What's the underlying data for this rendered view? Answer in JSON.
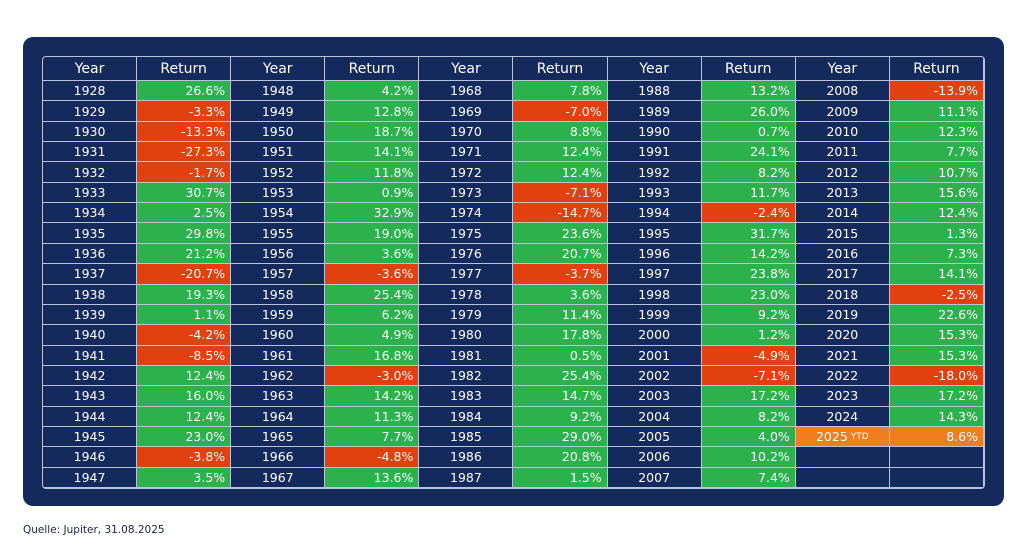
{
  "table": {
    "header": [
      "Year",
      "Return"
    ],
    "colors": {
      "positive": "#2bb24c",
      "negative": "#e2400f",
      "current": "#f07d22",
      "background": "#142a5c"
    },
    "groups": [
      [
        [
          "1928",
          "26.6%"
        ],
        [
          "1929",
          "-3.3%"
        ],
        [
          "1930",
          "-13.3%"
        ],
        [
          "1931",
          "-27.3%"
        ],
        [
          "1932",
          "-1.7%"
        ],
        [
          "1933",
          "30.7%"
        ],
        [
          "1934",
          "2.5%"
        ],
        [
          "1935",
          "29.8%"
        ],
        [
          "1936",
          "21.2%"
        ],
        [
          "1937",
          "-20.7%"
        ],
        [
          "1938",
          "19.3%"
        ],
        [
          "1939",
          "1.1%"
        ],
        [
          "1940",
          "-4.2%"
        ],
        [
          "1941",
          "-8.5%"
        ],
        [
          "1942",
          "12.4%"
        ],
        [
          "1943",
          "16.0%"
        ],
        [
          "1944",
          "12.4%"
        ],
        [
          "1945",
          "23.0%"
        ],
        [
          "1946",
          "-3.8%"
        ],
        [
          "1947",
          "3.5%"
        ]
      ],
      [
        [
          "1948",
          "4.2%"
        ],
        [
          "1949",
          "12.8%"
        ],
        [
          "1950",
          "18.7%"
        ],
        [
          "1951",
          "14.1%"
        ],
        [
          "1952",
          "11.8%"
        ],
        [
          "1953",
          "0.9%"
        ],
        [
          "1954",
          "32.9%"
        ],
        [
          "1955",
          "19.0%"
        ],
        [
          "1956",
          "3.6%"
        ],
        [
          "1957",
          "-3.6%"
        ],
        [
          "1958",
          "25.4%"
        ],
        [
          "1959",
          "6.2%"
        ],
        [
          "1960",
          "4.9%"
        ],
        [
          "1961",
          "16.8%"
        ],
        [
          "1962",
          "-3.0%"
        ],
        [
          "1963",
          "14.2%"
        ],
        [
          "1964",
          "11.3%"
        ],
        [
          "1965",
          "7.7%"
        ],
        [
          "1966",
          "-4.8%"
        ],
        [
          "1967",
          "13.6%"
        ]
      ],
      [
        [
          "1968",
          "7.8%"
        ],
        [
          "1969",
          "-7.0%"
        ],
        [
          "1970",
          "8.8%"
        ],
        [
          "1971",
          "12.4%"
        ],
        [
          "1972",
          "12.4%"
        ],
        [
          "1973",
          "-7.1%"
        ],
        [
          "1974",
          "-14.7%"
        ],
        [
          "1975",
          "23.6%"
        ],
        [
          "1976",
          "20.7%"
        ],
        [
          "1977",
          "-3.7%"
        ],
        [
          "1978",
          "3.6%"
        ],
        [
          "1979",
          "11.4%"
        ],
        [
          "1980",
          "17.8%"
        ],
        [
          "1981",
          "0.5%"
        ],
        [
          "1982",
          "25.4%"
        ],
        [
          "1983",
          "14.7%"
        ],
        [
          "1984",
          "9.2%"
        ],
        [
          "1985",
          "29.0%"
        ],
        [
          "1986",
          "20.8%"
        ],
        [
          "1987",
          "1.5%"
        ]
      ],
      [
        [
          "1988",
          "13.2%"
        ],
        [
          "1989",
          "26.0%"
        ],
        [
          "1990",
          "0.7%"
        ],
        [
          "1991",
          "24.1%"
        ],
        [
          "1992",
          "8.2%"
        ],
        [
          "1993",
          "11.7%"
        ],
        [
          "1994",
          "-2.4%"
        ],
        [
          "1995",
          "31.7%"
        ],
        [
          "1996",
          "14.2%"
        ],
        [
          "1997",
          "23.8%"
        ],
        [
          "1998",
          "23.0%"
        ],
        [
          "1999",
          "9.2%"
        ],
        [
          "2000",
          "1.2%"
        ],
        [
          "2001",
          "-4.9%"
        ],
        [
          "2002",
          "-7.1%"
        ],
        [
          "2003",
          "17.2%"
        ],
        [
          "2004",
          "8.2%"
        ],
        [
          "2005",
          "4.0%"
        ],
        [
          "2006",
          "10.2%"
        ],
        [
          "2007",
          "7.4%"
        ]
      ],
      [
        [
          "2008",
          "-13.9%"
        ],
        [
          "2009",
          "11.1%"
        ],
        [
          "2010",
          "12.3%"
        ],
        [
          "2011",
          "7.7%"
        ],
        [
          "2012",
          "10.7%"
        ],
        [
          "2013",
          "15.6%"
        ],
        [
          "2014",
          "12.4%"
        ],
        [
          "2015",
          "1.3%"
        ],
        [
          "2016",
          "7.3%"
        ],
        [
          "2017",
          "14.1%"
        ],
        [
          "2018",
          "-2.5%"
        ],
        [
          "2019",
          "22.6%"
        ],
        [
          "2020",
          "15.3%"
        ],
        [
          "2021",
          "15.3%"
        ],
        [
          "2022",
          "-18.0%"
        ],
        [
          "2023",
          "17.2%"
        ],
        [
          "2024",
          "14.3%"
        ],
        [
          "2025",
          "8.6%",
          "YTD"
        ]
      ]
    ]
  },
  "source": "Quelle: Jupiter, 31.08.2025"
}
